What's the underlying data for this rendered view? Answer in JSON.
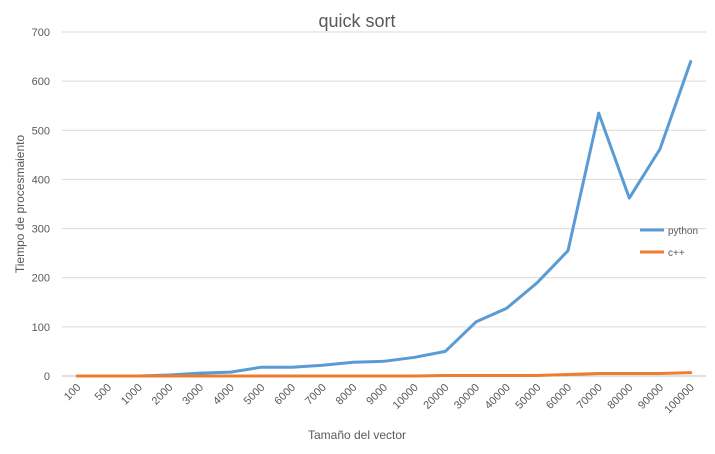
{
  "chart_data": {
    "type": "line",
    "title": "quick sort",
    "xlabel": "Tamaño del vector",
    "ylabel": "Tiempo de procesmaiento",
    "categories": [
      "100",
      "500",
      "1000",
      "2000",
      "3000",
      "4000",
      "5000",
      "6000",
      "7000",
      "8000",
      "9000",
      "10000",
      "20000",
      "30000",
      "40000",
      "50000",
      "60000",
      "70000",
      "80000",
      "90000",
      "100000"
    ],
    "ylim": [
      0,
      700
    ],
    "yticks": [
      "0",
      "100",
      "200",
      "300",
      "400",
      "500",
      "600",
      "700"
    ],
    "grid": true,
    "legend_position": "right",
    "series": [
      {
        "name": "python",
        "color": "#5b9bd5",
        "values": [
          0,
          0,
          0,
          2,
          6,
          8,
          18,
          18,
          22,
          28,
          30,
          38,
          50,
          110,
          138,
          190,
          255,
          535,
          362,
          462,
          640
        ]
      },
      {
        "name": "c++",
        "color": "#ed7d31",
        "values": [
          0,
          0,
          0,
          0,
          0,
          0,
          0,
          0,
          0,
          0,
          0,
          0,
          1,
          1,
          1,
          1,
          3,
          5,
          5,
          5,
          7
        ]
      }
    ]
  }
}
